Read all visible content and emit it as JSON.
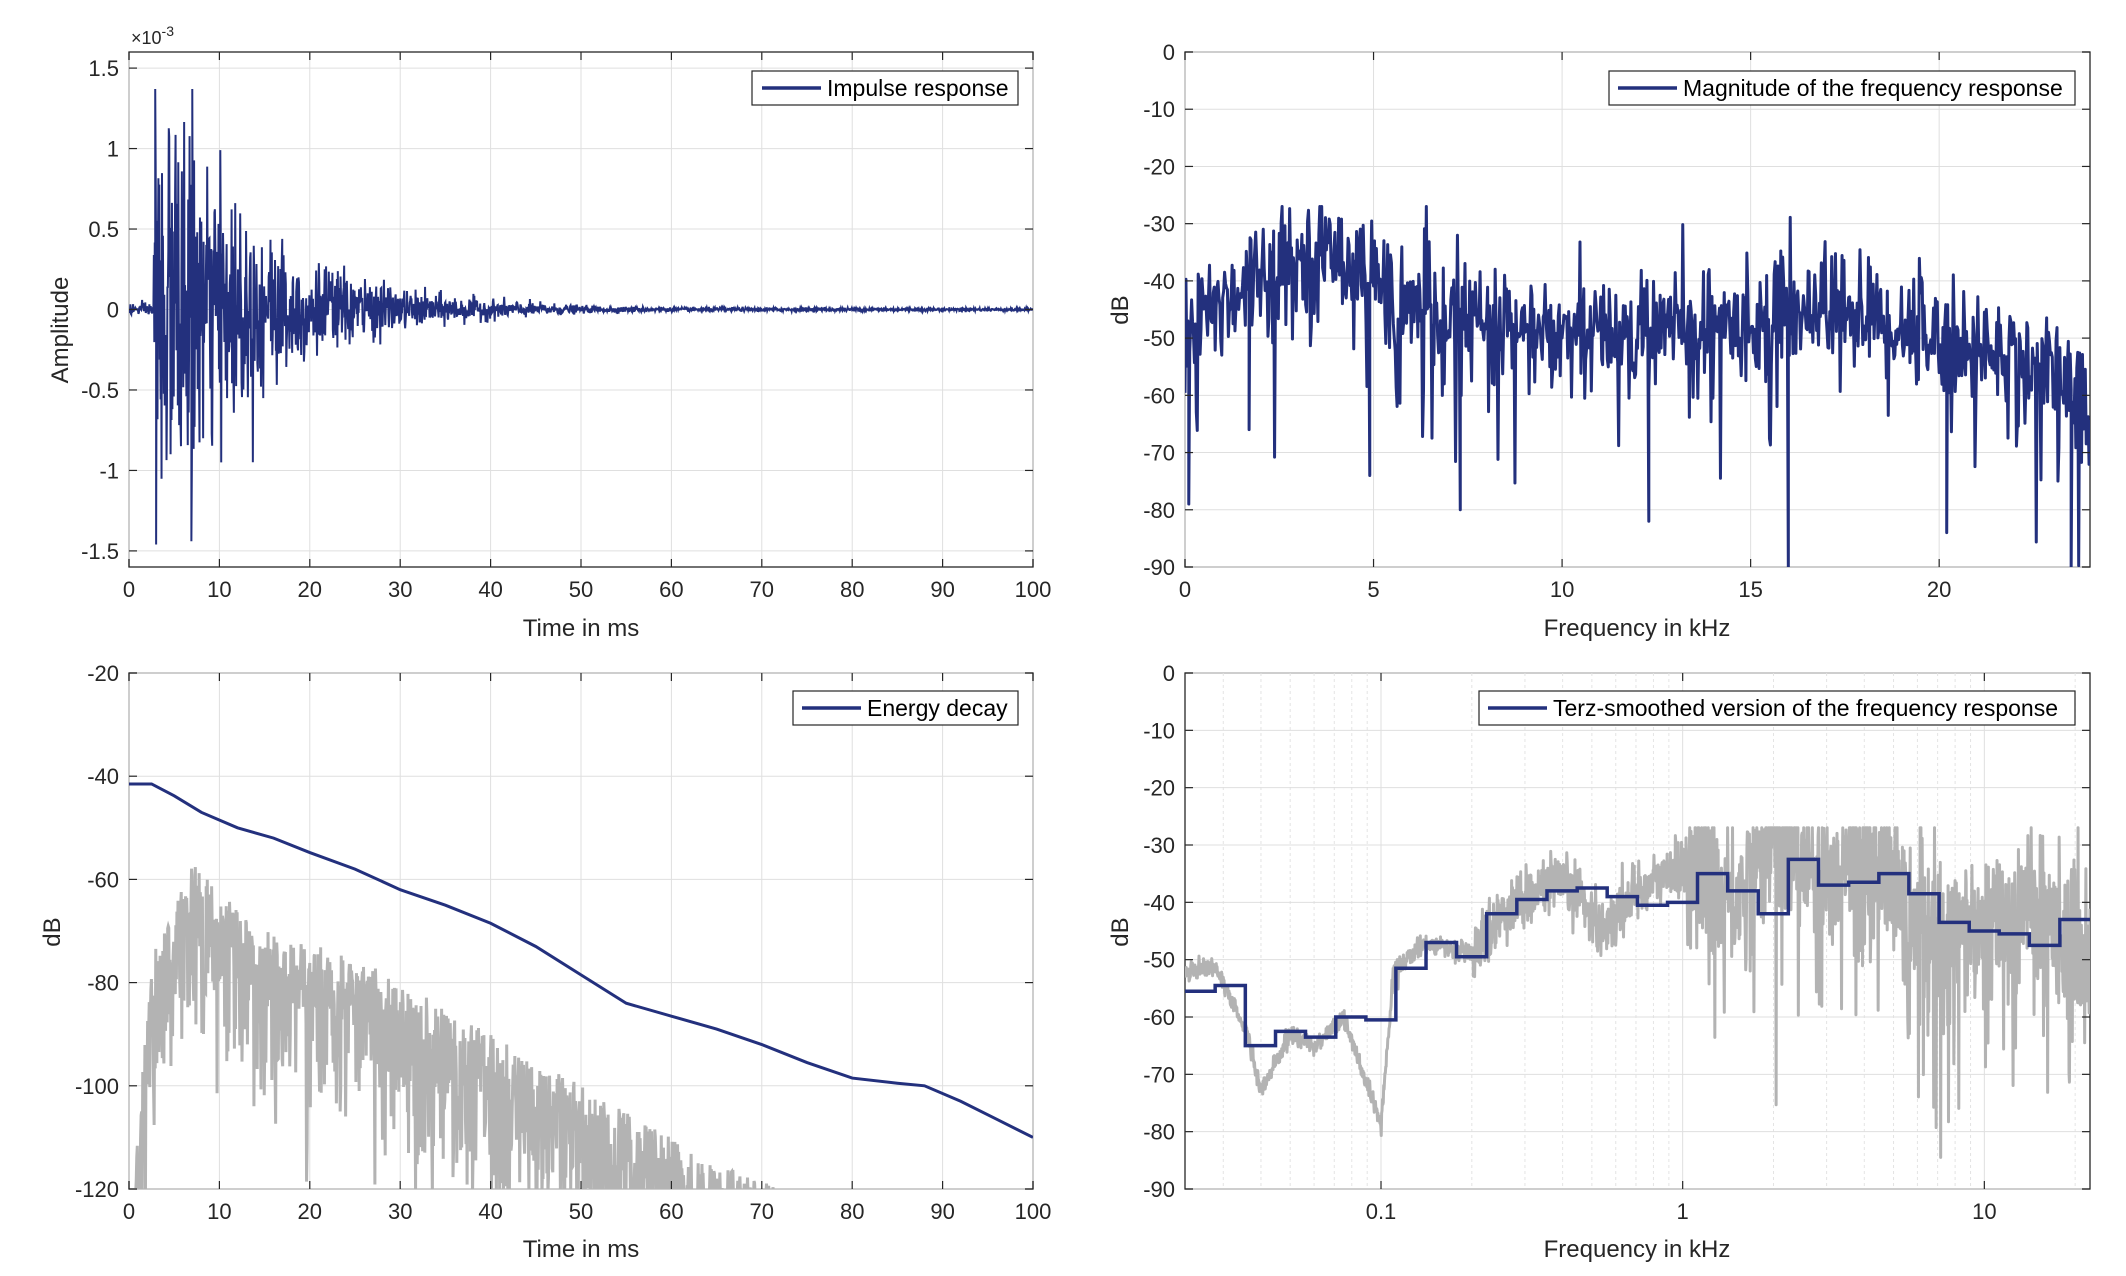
{
  "colors": {
    "primary_series": "#23307d",
    "background_series": "#b3b3b3",
    "grid": "#dfdfdf",
    "axis": "#262626"
  },
  "chart_data": [
    {
      "id": "impulse",
      "type": "line",
      "legend": "Impulse response",
      "legend_position": "top-right",
      "xlabel": "Time in ms",
      "ylabel": "Amplitude",
      "xlim": [
        0,
        100
      ],
      "ylim": [
        -1.6,
        1.6
      ],
      "xticks": [
        0,
        10,
        20,
        30,
        40,
        50,
        60,
        70,
        80,
        90,
        100
      ],
      "yticks": [
        -1.5,
        -1,
        -0.5,
        0,
        0.5,
        1,
        1.5
      ],
      "ytick_labels": [
        "-1.5",
        "-1",
        "-0.5",
        "0",
        "0.5",
        "1",
        "1.5"
      ],
      "exponent_label": "×10",
      "exponent_power": "-3",
      "grid": true,
      "series": [
        {
          "name": "Impulse response",
          "color": "#23307d",
          "envelope": {
            "onset_ms": 2.7,
            "peaks": [
              {
                "t": 2.9,
                "v": 1.37
              },
              {
                "t": 3.0,
                "v": -1.46
              },
              {
                "t": 7.0,
                "v": 1.37
              },
              {
                "t": 6.9,
                "v": -1.44
              }
            ],
            "amplitude_at_ms": [
              [
                3,
                0.8
              ],
              [
                10,
                0.5
              ],
              [
                20,
                0.2
              ],
              [
                30,
                0.08
              ],
              [
                40,
                0.04
              ],
              [
                50,
                0.015
              ],
              [
                60,
                0.008
              ],
              [
                100,
                0.006
              ]
            ]
          }
        }
      ]
    },
    {
      "id": "magnitude",
      "type": "line",
      "legend": "Magnitude of the frequency response",
      "legend_position": "top-right",
      "xlabel": "Frequency in kHz",
      "ylabel": "dB",
      "xlim": [
        0,
        24
      ],
      "ylim": [
        -90,
        0
      ],
      "xticks": [
        0,
        5,
        10,
        15,
        20
      ],
      "yticks": [
        0,
        -10,
        -20,
        -30,
        -40,
        -50,
        -60,
        -70,
        -80,
        -90
      ],
      "grid": true,
      "series": [
        {
          "name": "Magnitude of the frequency response",
          "color": "#23307d",
          "trend_db": [
            [
              0.1,
              -48
            ],
            [
              2,
              -38
            ],
            [
              4.3,
              -35
            ],
            [
              6,
              -45
            ],
            [
              10,
              -50
            ],
            [
              15,
              -47
            ],
            [
              17,
              -44
            ],
            [
              20,
              -50
            ],
            [
              23,
              -55
            ],
            [
              24,
              -62
            ]
          ],
          "notable_dips": [
            [
              0.1,
              -79
            ],
            [
              1.7,
              -66
            ],
            [
              4.9,
              -74
            ],
            [
              7.3,
              -80
            ],
            [
              12.3,
              -82
            ],
            [
              16,
              -90
            ],
            [
              20.2,
              -84
            ],
            [
              23.5,
              -90
            ]
          ]
        }
      ]
    },
    {
      "id": "energy",
      "type": "line",
      "legend": "Energy decay",
      "legend_position": "top-right",
      "xlabel": "Time in ms",
      "ylabel": "dB",
      "xlim": [
        0,
        100
      ],
      "ylim": [
        -120,
        -20
      ],
      "xticks": [
        0,
        10,
        20,
        30,
        40,
        50,
        60,
        70,
        80,
        90,
        100
      ],
      "yticks": [
        -20,
        -40,
        -60,
        -80,
        -100,
        -120
      ],
      "grid": true,
      "series": [
        {
          "name": "Energy decay",
          "color": "#23307d",
          "x": [
            0,
            2.5,
            5,
            8,
            12,
            16,
            20,
            25,
            30,
            35,
            40,
            45,
            50,
            55,
            60,
            65,
            70,
            75,
            80,
            85,
            88,
            92,
            96,
            100
          ],
          "y": [
            -41.5,
            -41.5,
            -43.8,
            -47,
            -50,
            -52,
            -54.8,
            -58,
            -62,
            -65,
            -68.5,
            -73,
            -78.5,
            -84,
            -86.5,
            -89,
            -92,
            -95.5,
            -98.5,
            -99.5,
            -100,
            -103,
            -106.5,
            -110
          ]
        },
        {
          "role": "background",
          "color": "#b3b3b3",
          "envelope_db": [
            [
              0.5,
              -120
            ],
            [
              2.5,
              -75
            ],
            [
              7,
              -57
            ],
            [
              15,
              -70
            ],
            [
              25,
              -75
            ],
            [
              35,
              -85
            ],
            [
              45,
              -95
            ],
            [
              55,
              -105
            ],
            [
              65,
              -115
            ],
            [
              72,
              -120
            ]
          ]
        }
      ]
    },
    {
      "id": "terz",
      "type": "line",
      "legend": "Terz-smoothed version of the frequency response",
      "legend_position": "top-right",
      "xlabel": "Frequency in kHz",
      "ylabel": "dB",
      "xscale": "log",
      "xlim": [
        0.0224,
        22.4
      ],
      "ylim": [
        -90,
        0
      ],
      "xticks": [
        0.1,
        1,
        10
      ],
      "xtick_labels": [
        "0.1",
        "1",
        "10"
      ],
      "yticks": [
        0,
        -10,
        -20,
        -30,
        -40,
        -50,
        -60,
        -70,
        -80,
        -90
      ],
      "grid": true,
      "series": [
        {
          "name": "Terz-smoothed version of the frequency response",
          "color": "#23307d",
          "band_edges": [
            0.0224,
            0.0282,
            0.0355,
            0.0447,
            0.0562,
            0.0708,
            0.0891,
            0.112,
            0.141,
            0.178,
            0.224,
            0.282,
            0.355,
            0.447,
            0.562,
            0.708,
            0.891,
            1.12,
            1.41,
            1.78,
            2.24,
            2.82,
            3.55,
            4.47,
            5.62,
            7.08,
            8.91,
            11.2,
            14.1,
            17.8,
            22.4
          ],
          "band_levels": [
            -55.5,
            -54.5,
            -65,
            -62.5,
            -63.5,
            -60,
            -60.5,
            -51.5,
            -47,
            -49.5,
            -42,
            -39.5,
            -38,
            -37.5,
            -39,
            -40.5,
            -40,
            -35,
            -38,
            -42,
            -32.5,
            -37,
            -36.5,
            -35,
            -38.5,
            -43.5,
            -45,
            -45.5,
            -47.5,
            -43,
            -47.5
          ]
        },
        {
          "role": "background",
          "color": "#b3b3b3",
          "trend_db": [
            [
              0.0224,
              -52
            ],
            [
              0.028,
              -51
            ],
            [
              0.036,
              -63
            ],
            [
              0.04,
              -73
            ],
            [
              0.05,
              -63
            ],
            [
              0.06,
              -65
            ],
            [
              0.075,
              -60
            ],
            [
              0.1,
              -79
            ],
            [
              0.11,
              -52
            ],
            [
              0.14,
              -47
            ],
            [
              0.2,
              -49
            ],
            [
              0.25,
              -42
            ],
            [
              0.35,
              -37
            ],
            [
              0.45,
              -38
            ],
            [
              0.55,
              -45
            ],
            [
              0.7,
              -38
            ],
            [
              1,
              -34
            ],
            [
              1.5,
              -40
            ],
            [
              2,
              -28
            ],
            [
              3,
              -36
            ],
            [
              4,
              -29
            ],
            [
              6,
              -45
            ],
            [
              10,
              -45
            ],
            [
              15,
              -40
            ],
            [
              22.4,
              -50
            ]
          ]
        }
      ]
    }
  ]
}
